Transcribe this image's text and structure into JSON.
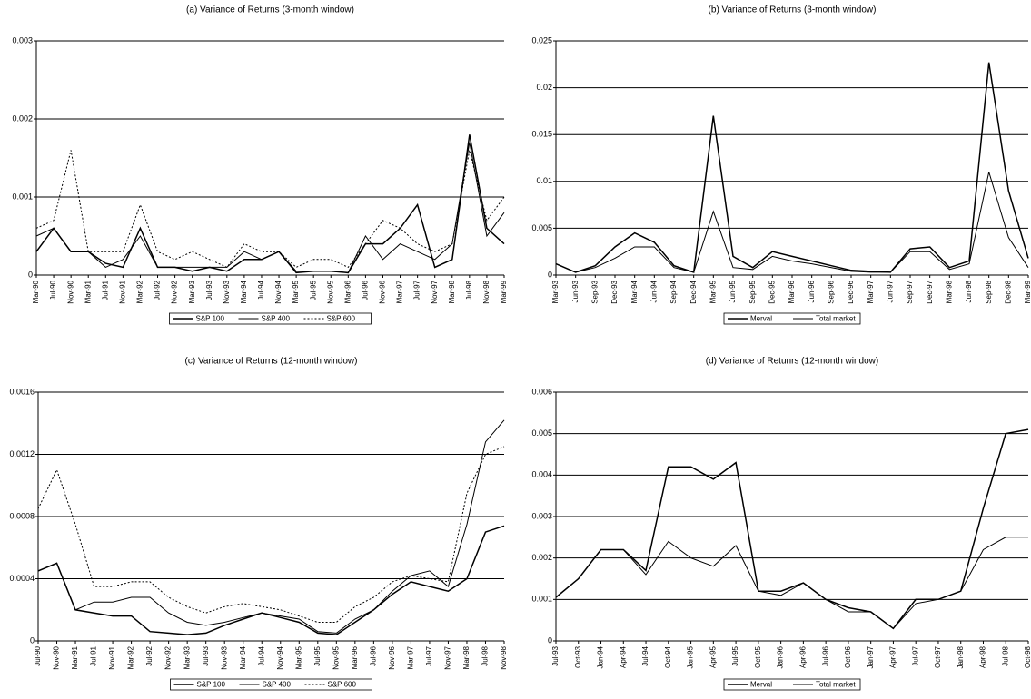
{
  "chart_data": [
    {
      "type": "line",
      "title": "(a) Variance of Returns (3-month window)",
      "categories": [
        "Mar-90",
        "Jul-90",
        "Nov-90",
        "Mar-91",
        "Jul-91",
        "Nov-91",
        "Mar-92",
        "Jul-92",
        "Nov-92",
        "Mar-93",
        "Jul-93",
        "Nov-93",
        "Mar-94",
        "Jul-94",
        "Nov-94",
        "Mar-95",
        "Jul-95",
        "Nov-95",
        "Mar-96",
        "Jul-96",
        "Nov-96",
        "Mar-97",
        "Jul-97",
        "Nov-97",
        "Mar-98",
        "Jul-98",
        "Nov-98",
        "Mar-99"
      ],
      "series": [
        {
          "name": "S&P 100",
          "color": "#000000",
          "dash": "none",
          "values": [
            0.0003,
            0.0006,
            0.0003,
            0.0003,
            0.00015,
            0.0001,
            0.0006,
            0.0001,
            0.0001,
            5e-05,
            0.0001,
            5e-05,
            0.0002,
            0.0002,
            0.0003,
            3e-05,
            5e-05,
            5e-05,
            3e-05,
            0.0004,
            0.0004,
            0.0006,
            0.0009,
            0.0001,
            0.0002,
            0.0018,
            0.0006,
            0.0004
          ]
        },
        {
          "name": "S&P 400",
          "color": "#000000",
          "dash": "none",
          "values": [
            0.0005,
            0.0006,
            0.0003,
            0.0003,
            0.0001,
            0.0002,
            0.0005,
            0.0001,
            0.0001,
            0.0001,
            0.0001,
            0.0001,
            0.0003,
            0.0002,
            0.0003,
            5e-05,
            5e-05,
            5e-05,
            3e-05,
            0.0005,
            0.0002,
            0.0004,
            0.0003,
            0.0002,
            0.0004,
            0.0017,
            0.0005,
            0.0008
          ]
        },
        {
          "name": "S&P 600",
          "color": "#000000",
          "dash": "2,2",
          "values": [
            0.0006,
            0.0007,
            0.0016,
            0.0003,
            0.0003,
            0.0003,
            0.0009,
            0.0003,
            0.0002,
            0.0003,
            0.0002,
            0.0001,
            0.0004,
            0.0003,
            0.0003,
            0.0001,
            0.0002,
            0.0002,
            0.0001,
            0.0004,
            0.0007,
            0.0006,
            0.0004,
            0.0003,
            0.0004,
            0.0016,
            0.0007,
            0.001
          ]
        }
      ],
      "ylim": [
        0,
        0.003
      ],
      "yticks": [
        0,
        0.001,
        0.002,
        0.003
      ],
      "grid": true
    },
    {
      "type": "line",
      "title": "(b) Variance of Returns (3-month window)",
      "categories": [
        "Mar-93",
        "Jun-93",
        "Sep-93",
        "Dec-93",
        "Mar-94",
        "Jun-94",
        "Sep-94",
        "Dec-94",
        "Mar-95",
        "Jun-95",
        "Sep-95",
        "Dec-95",
        "Mar-96",
        "Jun-96",
        "Sep-96",
        "Dec-96",
        "Mar-97",
        "Jun-97",
        "Sep-97",
        "Dec-97",
        "Mar-98",
        "Jun-98",
        "Sep-98",
        "Dec-98",
        "Mar-99"
      ],
      "series": [
        {
          "name": "Merval",
          "color": "#000000",
          "dash": "none",
          "values": [
            0.0012,
            0.0003,
            0.001,
            0.003,
            0.0045,
            0.0035,
            0.001,
            0.0003,
            0.017,
            0.002,
            0.0008,
            0.0025,
            0.002,
            0.0015,
            0.001,
            0.0005,
            0.0004,
            0.0003,
            0.0028,
            0.003,
            0.0008,
            0.0015,
            0.0227,
            0.009,
            0.0018
          ]
        },
        {
          "name": "Total market",
          "color": "#000000",
          "dash": "none",
          "values": [
            0.0012,
            0.0003,
            0.0008,
            0.0018,
            0.003,
            0.003,
            0.0008,
            0.0003,
            0.0068,
            0.0008,
            0.0006,
            0.002,
            0.0015,
            0.0012,
            0.0008,
            0.0004,
            0.0003,
            0.0003,
            0.0025,
            0.0025,
            0.0006,
            0.0012,
            0.011,
            0.004,
            0.0008
          ]
        }
      ],
      "ylim": [
        0,
        0.025
      ],
      "yticks": [
        0,
        0.005,
        0.01,
        0.015,
        0.02,
        0.025
      ],
      "grid": true
    },
    {
      "type": "line",
      "title": "(c) Variance of Returns (12-month window)",
      "categories": [
        "Jul-90",
        "Nov-90",
        "Mar-91",
        "Jul-91",
        "Nov-91",
        "Mar-92",
        "Jul-92",
        "Nov-92",
        "Mar-93",
        "Jul-93",
        "Nov-93",
        "Mar-94",
        "Jul-94",
        "Nov-94",
        "Mar-95",
        "Jul-95",
        "Nov-95",
        "Mar-96",
        "Jul-96",
        "Nov-96",
        "Mar-97",
        "Jul-97",
        "Nov-97",
        "Mar-98",
        "Jul-98",
        "Nov-98"
      ],
      "series": [
        {
          "name": "S&P 100",
          "color": "#000000",
          "dash": "none",
          "values": [
            0.00045,
            0.0005,
            0.0002,
            0.00018,
            0.00016,
            0.00016,
            6e-05,
            5e-05,
            4e-05,
            5e-05,
            0.0001,
            0.00014,
            0.00018,
            0.00015,
            0.00012,
            5e-05,
            4e-05,
            0.00012,
            0.0002,
            0.0003,
            0.00038,
            0.00035,
            0.00032,
            0.0004,
            0.0007,
            0.00074
          ]
        },
        {
          "name": "S&P 400",
          "color": "#000000",
          "dash": "none",
          "values": [
            0.00045,
            0.0005,
            0.0002,
            0.00025,
            0.00025,
            0.00028,
            0.00028,
            0.00018,
            0.00012,
            0.0001,
            0.00012,
            0.00015,
            0.00018,
            0.00016,
            0.00014,
            6e-05,
            5e-05,
            0.00014,
            0.0002,
            0.00032,
            0.00042,
            0.00045,
            0.00035,
            0.00075,
            0.00128,
            0.00142
          ]
        },
        {
          "name": "S&P 600",
          "color": "#000000",
          "dash": "2,2",
          "values": [
            0.00085,
            0.0011,
            0.00075,
            0.00035,
            0.00035,
            0.00038,
            0.00038,
            0.00028,
            0.00022,
            0.00018,
            0.00022,
            0.00024,
            0.00022,
            0.0002,
            0.00016,
            0.00012,
            0.00012,
            0.00022,
            0.00028,
            0.00038,
            0.00042,
            0.0004,
            0.00038,
            0.00095,
            0.0012,
            0.00125
          ]
        }
      ],
      "ylim": [
        0,
        0.0016
      ],
      "yticks": [
        0,
        0.0004,
        0.0008,
        0.0012,
        0.0016
      ],
      "grid": true
    },
    {
      "type": "line",
      "title": "(d) Variance of Retunrs (12-month window)",
      "categories": [
        "Jul-93",
        "Oct-93",
        "Jan-94",
        "Apr-94",
        "Jul-94",
        "Oct-94",
        "Jan-95",
        "Apr-95",
        "Jul-95",
        "Oct-95",
        "Jan-96",
        "Apr-96",
        "Jul-96",
        "Oct-96",
        "Jan-97",
        "Apr-97",
        "Jul-97",
        "Oct-97",
        "Jan-98",
        "Apr-98",
        "Jul-98",
        "Oct-98"
      ],
      "series": [
        {
          "name": "Merval",
          "color": "#000000",
          "dash": "none",
          "values": [
            0.00105,
            0.0015,
            0.0022,
            0.0022,
            0.0017,
            0.0042,
            0.0042,
            0.0039,
            0.0043,
            0.0012,
            0.0012,
            0.0014,
            0.001,
            0.0008,
            0.0007,
            0.0003,
            0.001,
            0.001,
            0.0012,
            0.0032,
            0.005,
            0.0051
          ]
        },
        {
          "name": "Total market",
          "color": "#000000",
          "dash": "none",
          "values": [
            0.00105,
            0.0015,
            0.0022,
            0.0022,
            0.0016,
            0.0024,
            0.002,
            0.0018,
            0.0023,
            0.0012,
            0.0011,
            0.0014,
            0.001,
            0.0007,
            0.0007,
            0.0003,
            0.0009,
            0.001,
            0.0012,
            0.0022,
            0.0025,
            0.0025
          ]
        }
      ],
      "ylim": [
        0,
        0.006
      ],
      "yticks": [
        0,
        0.001,
        0.002,
        0.003,
        0.004,
        0.005,
        0.006
      ],
      "grid": true
    }
  ]
}
